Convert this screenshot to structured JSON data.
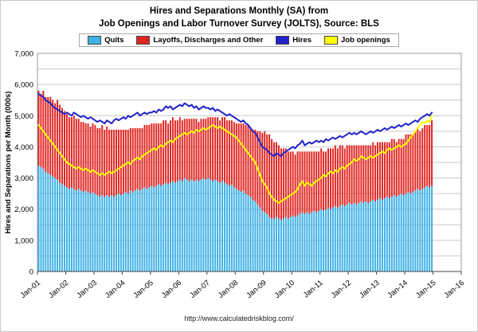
{
  "header": {
    "line1": "Hires and Separations Monthly (SA) from",
    "line2": "Job Openings and Labor Turnover Survey (JOLTS), Source: BLS"
  },
  "footer": {
    "url": "http://www.calculatedriskblog.com/"
  },
  "chart_data": {
    "type": "bar",
    "subtype": "stacked monthly bars with two overlay lines",
    "title": "Hires and Separations Monthly (SA) from Job Openings and Labor Turnover Survey (JOLTS), Source: BLS",
    "ylabel": "Hires and Separations per Month (000s)",
    "ylim": [
      0,
      7000
    ],
    "y_tick_step": 1000,
    "gridline_step": 500,
    "grid": "horizontal",
    "legend_position": "top",
    "y_tick_labels": [
      "0",
      "1,000",
      "2,000",
      "3,000",
      "4,000",
      "5,000",
      "6,000",
      "7,000"
    ],
    "x_tick_labels": [
      "Jan-01",
      "Jan-02",
      "Jan-03",
      "Jan-04",
      "Jan-05",
      "Jan-06",
      "Jan-07",
      "Jan-08",
      "Jan-09",
      "Jan-10",
      "Jan-11",
      "Jan-12",
      "Jan-13",
      "Jan-14",
      "Jan-15",
      "Jan-16"
    ],
    "x_frequency": "monthly",
    "x_start": "2001-01",
    "x_end": "2014-12",
    "series": [
      {
        "name": "Quits",
        "role": "stacked-bar",
        "color": "#3FB1E5",
        "values": [
          3400,
          3350,
          3300,
          3200,
          3150,
          3100,
          3050,
          3000,
          2950,
          2850,
          2800,
          2750,
          2700,
          2650,
          2700,
          2650,
          2600,
          2650,
          2600,
          2550,
          2600,
          2550,
          2500,
          2550,
          2500,
          2450,
          2400,
          2450,
          2400,
          2450,
          2400,
          2450,
          2400,
          2450,
          2500,
          2450,
          2500,
          2550,
          2500,
          2600,
          2550,
          2600,
          2650,
          2600,
          2650,
          2700,
          2650,
          2700,
          2750,
          2700,
          2750,
          2800,
          2750,
          2800,
          2850,
          2800,
          2850,
          2900,
          2850,
          2900,
          2950,
          2900,
          3000,
          2950,
          2900,
          2950,
          2900,
          2950,
          2900,
          2950,
          3000,
          2950,
          3000,
          2950,
          2900,
          2950,
          2900,
          2850,
          2900,
          2850,
          2800,
          2750,
          2800,
          2700,
          2650,
          2600,
          2550,
          2600,
          2500,
          2450,
          2400,
          2300,
          2250,
          2150,
          2050,
          1950,
          1900,
          1850,
          1750,
          1700,
          1700,
          1750,
          1700,
          1650,
          1700,
          1750,
          1700,
          1750,
          1800,
          1750,
          1800,
          1850,
          1900,
          1850,
          1900,
          1850,
          1900,
          1950,
          1900,
          1950,
          2000,
          1950,
          2000,
          2050,
          2000,
          2050,
          2100,
          2050,
          2100,
          2150,
          2100,
          2150,
          2200,
          2150,
          2200,
          2150,
          2200,
          2250,
          2200,
          2250,
          2200,
          2250,
          2300,
          2250,
          2300,
          2350,
          2300,
          2350,
          2400,
          2350,
          2400,
          2450,
          2400,
          2450,
          2500,
          2450,
          2500,
          2550,
          2500,
          2550,
          2600,
          2650,
          2600,
          2650,
          2700,
          2750,
          2700,
          2750
        ]
      },
      {
        "name": "Layoffs, Discharges and Other",
        "role": "stacked-bar",
        "color": "#E02420",
        "values": [
          2400,
          2350,
          2500,
          2400,
          2450,
          2500,
          2450,
          2400,
          2550,
          2500,
          2450,
          2400,
          2350,
          2300,
          2250,
          2350,
          2300,
          2250,
          2200,
          2250,
          2150,
          2200,
          2150,
          2200,
          2200,
          2150,
          2200,
          2250,
          2150,
          2200,
          2150,
          2100,
          2150,
          2100,
          2050,
          2100,
          2050,
          2000,
          2050,
          2000,
          2050,
          2000,
          1950,
          2000,
          1950,
          2000,
          2050,
          2000,
          2000,
          2050,
          2000,
          1950,
          2000,
          2050,
          2000,
          1950,
          2000,
          2050,
          2000,
          1950,
          2000,
          1950,
          1900,
          1950,
          2000,
          1950,
          2000,
          1950,
          1900,
          1950,
          1900,
          1950,
          1950,
          2000,
          2050,
          2000,
          2050,
          2000,
          2050,
          2100,
          2050,
          2100,
          2050,
          2100,
          2100,
          2150,
          2200,
          2150,
          2200,
          2250,
          2200,
          2250,
          2300,
          2350,
          2450,
          2500,
          2600,
          2550,
          2650,
          2550,
          2450,
          2400,
          2350,
          2300,
          2250,
          2200,
          2150,
          2100,
          2050,
          2000,
          2050,
          2000,
          1950,
          2000,
          1950,
          2000,
          1950,
          1900,
          1950,
          1900,
          1950,
          1900,
          1850,
          1900,
          1950,
          1900,
          1950,
          1900,
          1950,
          1900,
          1850,
          1900,
          1850,
          1900,
          1850,
          1900,
          1850,
          1800,
          1850,
          1800,
          1850,
          1800,
          1850,
          1800,
          1850,
          1800,
          1850,
          1800,
          1750,
          1800,
          1850,
          1800,
          1750,
          1800,
          1750,
          1800,
          1900,
          1850,
          1900,
          1850,
          1900,
          1950,
          1900,
          1950,
          2000,
          1950,
          2000,
          2100
        ]
      },
      {
        "name": "Hires",
        "role": "line",
        "color": "#2222CC",
        "values": [
          5700,
          5650,
          5600,
          5500,
          5450,
          5400,
          5300,
          5250,
          5200,
          5150,
          5100,
          5050,
          5100,
          5050,
          5000,
          5100,
          5050,
          5000,
          4950,
          5000,
          4950,
          4900,
          4950,
          4900,
          4850,
          4800,
          4850,
          4800,
          4750,
          4850,
          4800,
          4750,
          4850,
          4900,
          4850,
          4900,
          4950,
          4900,
          5000,
          4950,
          5000,
          5050,
          5100,
          5000,
          5050,
          5100,
          5050,
          5100,
          5100,
          5150,
          5100,
          5200,
          5150,
          5200,
          5300,
          5250,
          5300,
          5200,
          5250,
          5300,
          5350,
          5300,
          5400,
          5350,
          5300,
          5350,
          5250,
          5300,
          5200,
          5250,
          5300,
          5250,
          5250,
          5200,
          5250,
          5150,
          5200,
          5150,
          5100,
          5050,
          5000,
          5050,
          5000,
          4950,
          4900,
          4850,
          4800,
          4850,
          4750,
          4700,
          4600,
          4500,
          4450,
          4300,
          4150,
          4000,
          3950,
          3900,
          3800,
          3750,
          3700,
          3800,
          3750,
          3700,
          3800,
          3850,
          3900,
          3950,
          4000,
          3950,
          4050,
          4100,
          4200,
          4050,
          4100,
          4150,
          4100,
          4150,
          4200,
          4150,
          4200,
          4150,
          4250,
          4200,
          4250,
          4300,
          4250,
          4300,
          4350,
          4300,
          4350,
          4400,
          4450,
          4400,
          4450,
          4400,
          4450,
          4500,
          4450,
          4400,
          4450,
          4500,
          4450,
          4500,
          4550,
          4500,
          4550,
          4600,
          4550,
          4600,
          4650,
          4600,
          4650,
          4700,
          4650,
          4700,
          4750,
          4700,
          4750,
          4800,
          4850,
          4800,
          4900,
          4950,
          5000,
          5050,
          5000,
          5100
        ]
      },
      {
        "name": "Job openings",
        "role": "line",
        "color": "#FFFF00",
        "values": [
          4700,
          4600,
          4500,
          4400,
          4300,
          4200,
          4100,
          4000,
          3900,
          3800,
          3700,
          3600,
          3500,
          3450,
          3400,
          3350,
          3300,
          3350,
          3300,
          3250,
          3300,
          3250,
          3200,
          3250,
          3200,
          3150,
          3100,
          3150,
          3100,
          3150,
          3200,
          3150,
          3200,
          3250,
          3300,
          3350,
          3400,
          3450,
          3500,
          3450,
          3550,
          3600,
          3650,
          3600,
          3700,
          3750,
          3800,
          3850,
          3900,
          3950,
          3900,
          4000,
          4050,
          4000,
          4100,
          4150,
          4200,
          4150,
          4250,
          4300,
          4350,
          4400,
          4450,
          4400,
          4450,
          4500,
          4450,
          4550,
          4500,
          4550,
          4600,
          4550,
          4600,
          4650,
          4700,
          4650,
          4600,
          4650,
          4600,
          4550,
          4500,
          4450,
          4400,
          4350,
          4300,
          4200,
          4100,
          4000,
          3900,
          3800,
          3700,
          3600,
          3500,
          3300,
          3100,
          2900,
          2800,
          2700,
          2500,
          2400,
          2300,
          2250,
          2200,
          2250,
          2300,
          2350,
          2400,
          2450,
          2500,
          2550,
          2650,
          2800,
          2900,
          2750,
          2850,
          2800,
          2750,
          2850,
          2900,
          2950,
          3000,
          3100,
          3050,
          3150,
          3200,
          3150,
          3250,
          3200,
          3300,
          3350,
          3300,
          3400,
          3450,
          3500,
          3600,
          3550,
          3600,
          3700,
          3650,
          3600,
          3650,
          3700,
          3650,
          3700,
          3750,
          3800,
          3850,
          3800,
          3900,
          3950,
          3900,
          3950,
          4000,
          4050,
          4000,
          4050,
          4100,
          4200,
          4300,
          4400,
          4500,
          4600,
          4700,
          4800,
          4750,
          4850,
          4800,
          5000
        ]
      }
    ]
  }
}
